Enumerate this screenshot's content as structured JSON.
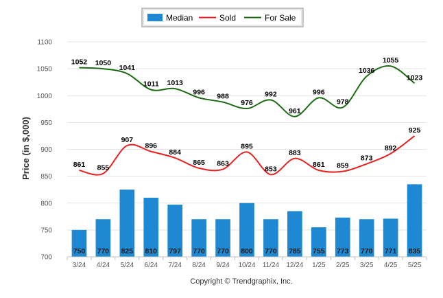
{
  "chart_data": {
    "type": "bar",
    "categories": [
      "3/24",
      "4/24",
      "5/24",
      "6/24",
      "7/24",
      "8/24",
      "9/24",
      "10/24",
      "11/24",
      "12/24",
      "1/25",
      "2/25",
      "3/25",
      "4/25",
      "5/25"
    ],
    "ylabel": "Price (in $,000)",
    "ylim": [
      700,
      1100
    ],
    "yticks": [
      700,
      750,
      800,
      850,
      900,
      950,
      1000,
      1050,
      1100
    ],
    "grid": true,
    "legend_position": "top-center",
    "series": [
      {
        "name": "Median",
        "type": "bar",
        "color": "#1f88d2",
        "values": [
          750,
          770,
          825,
          810,
          797,
          770,
          770,
          800,
          770,
          785,
          755,
          773,
          770,
          771,
          835
        ]
      },
      {
        "name": "Sold",
        "type": "line",
        "color": "#e8201f",
        "values": [
          861,
          855,
          907,
          896,
          884,
          865,
          863,
          895,
          853,
          883,
          861,
          859,
          873,
          892,
          925
        ]
      },
      {
        "name": "For Sale",
        "type": "line",
        "color": "#1c6b12",
        "values": [
          1052,
          1050,
          1041,
          1011,
          1013,
          996,
          988,
          976,
          992,
          961,
          996,
          978,
          1036,
          1055,
          1023
        ]
      }
    ]
  },
  "copyright": "Copyright © Trendgraphix, Inc."
}
